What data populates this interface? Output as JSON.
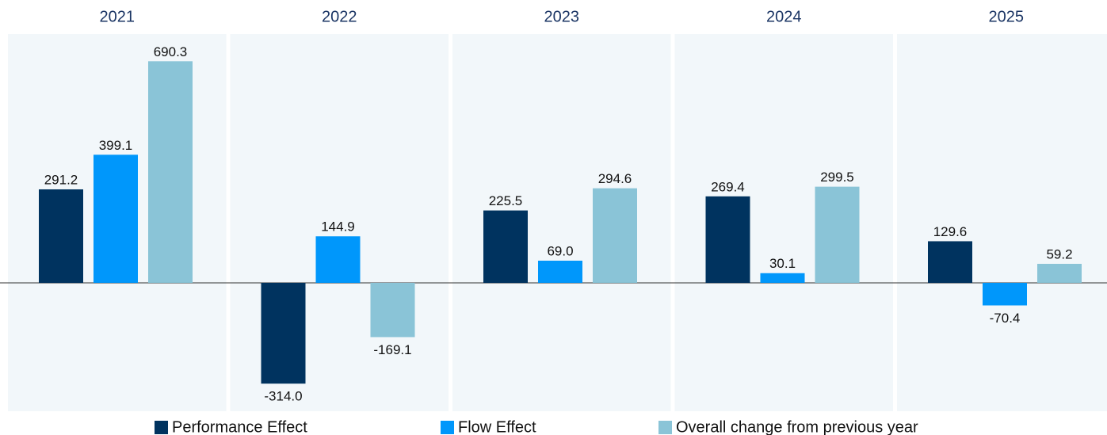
{
  "chart_data": {
    "type": "bar",
    "categories": [
      "2021",
      "2022",
      "2023",
      "2024",
      "2025"
    ],
    "series": [
      {
        "name": "Performance Effect",
        "color": "#00335f",
        "values": [
          291.2,
          -314.0,
          225.5,
          269.4,
          129.6
        ],
        "value_labels": [
          "291.2",
          "-314.0",
          "225.5",
          "269.4",
          "129.6"
        ]
      },
      {
        "name": "Flow Effect",
        "color": "#0097fb",
        "values": [
          399.1,
          144.9,
          69.0,
          30.1,
          -70.4
        ],
        "value_labels": [
          "399.1",
          "144.9",
          "69.0",
          "30.1",
          "-70.4"
        ]
      },
      {
        "name": "Overall change from previous year",
        "color": "#8ac4d7",
        "values": [
          690.3,
          -169.1,
          294.6,
          299.5,
          59.2
        ],
        "value_labels": [
          "690.3",
          "-169.1",
          "294.6",
          "299.5",
          "59.2"
        ]
      }
    ],
    "ylim": [
      -400,
      775
    ]
  }
}
